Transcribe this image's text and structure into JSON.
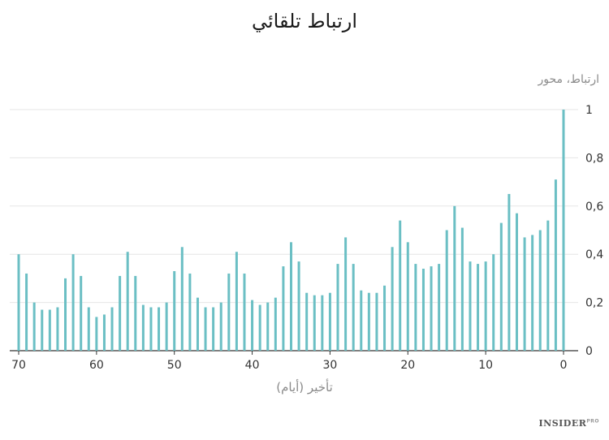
{
  "chart_data": {
    "type": "bar",
    "title": "ارتباط تلقائي",
    "ylabel": "ارتباط، محور",
    "xlabel": "تأخير (أيام)",
    "xlim": [
      70,
      0
    ],
    "ylim": [
      0,
      1
    ],
    "x_ticks": [
      0,
      10,
      20,
      30,
      40,
      50,
      60,
      70
    ],
    "x_tick_labels": [
      "0",
      "10",
      "20",
      "30",
      "40",
      "50",
      "60",
      "70"
    ],
    "y_ticks": [
      0,
      0.2,
      0.4,
      0.6,
      0.8,
      1
    ],
    "y_tick_labels": [
      "0",
      "0,2",
      "0,4",
      "0,6",
      "0,8",
      "1"
    ],
    "grid": true,
    "bar_color": "#6bbfc4",
    "x": [
      0,
      1,
      2,
      3,
      4,
      5,
      6,
      7,
      8,
      9,
      10,
      11,
      12,
      13,
      14,
      15,
      16,
      17,
      18,
      19,
      20,
      21,
      22,
      23,
      24,
      25,
      26,
      27,
      28,
      29,
      30,
      31,
      32,
      33,
      34,
      35,
      36,
      37,
      38,
      39,
      40,
      41,
      42,
      43,
      44,
      45,
      46,
      47,
      48,
      49,
      50,
      51,
      52,
      53,
      54,
      55,
      56,
      57,
      58,
      59,
      60,
      61,
      62,
      63,
      64,
      65,
      66,
      67,
      68,
      69,
      70
    ],
    "values": [
      1.0,
      0.71,
      0.54,
      0.5,
      0.48,
      0.47,
      0.57,
      0.65,
      0.53,
      0.4,
      0.37,
      0.36,
      0.37,
      0.51,
      0.6,
      0.5,
      0.36,
      0.35,
      0.34,
      0.36,
      0.45,
      0.54,
      0.43,
      0.27,
      0.24,
      0.24,
      0.25,
      0.36,
      0.47,
      0.36,
      0.24,
      0.23,
      0.23,
      0.24,
      0.37,
      0.45,
      0.35,
      0.22,
      0.2,
      0.19,
      0.21,
      0.32,
      0.41,
      0.32,
      0.2,
      0.18,
      0.18,
      0.22,
      0.32,
      0.43,
      0.33,
      0.2,
      0.18,
      0.18,
      0.19,
      0.31,
      0.41,
      0.31,
      0.18,
      0.15,
      0.14,
      0.18,
      0.31,
      0.4,
      0.3,
      0.18,
      0.17,
      0.17,
      0.2,
      0.32,
      0.4
    ]
  },
  "credit": {
    "brand": "INSIDER",
    "suffix": "PRO"
  }
}
